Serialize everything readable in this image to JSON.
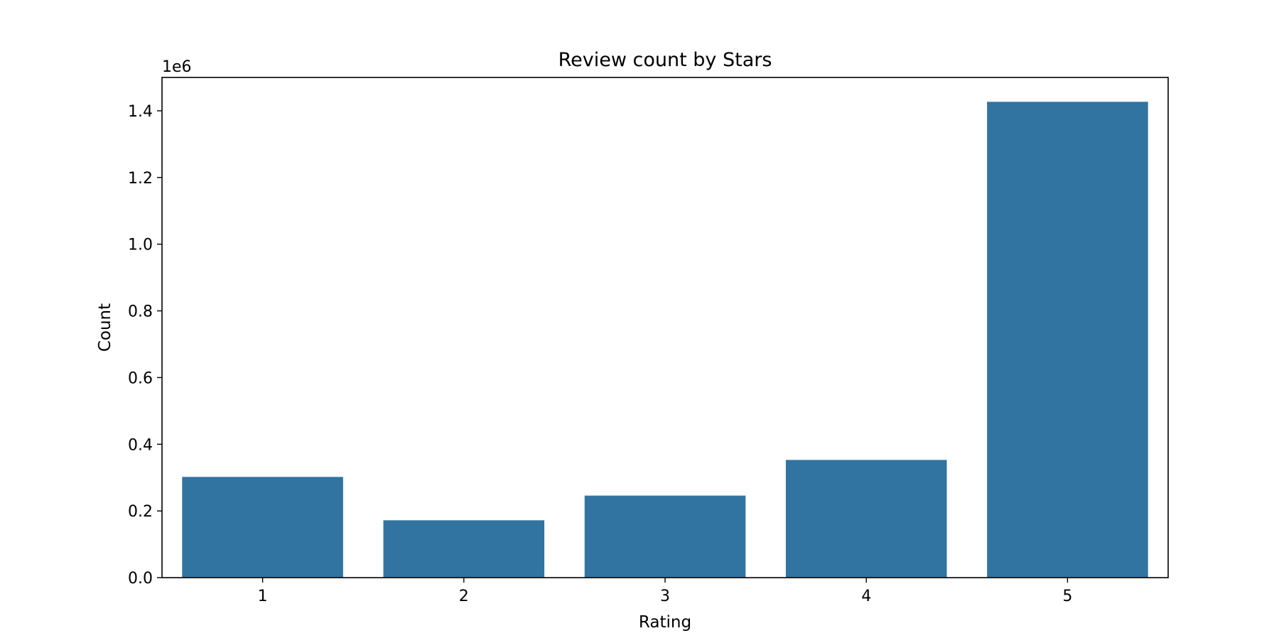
{
  "chart_data": {
    "type": "bar",
    "title": "Review count by Stars",
    "xlabel": "Rating",
    "ylabel": "Count",
    "y_offset_label": "1e6",
    "categories": [
      "1",
      "2",
      "3",
      "4",
      "5"
    ],
    "values": [
      302000,
      172000,
      246000,
      353000,
      1427000
    ],
    "ylim": [
      0,
      1500000
    ],
    "yticks": [
      0,
      200000,
      400000,
      600000,
      800000,
      1000000,
      1200000,
      1400000
    ],
    "ytick_labels": [
      "0.0",
      "0.2",
      "0.4",
      "0.6",
      "0.8",
      "1.0",
      "1.2",
      "1.4"
    ],
    "grid": false,
    "bar_color": "#3274a1"
  }
}
